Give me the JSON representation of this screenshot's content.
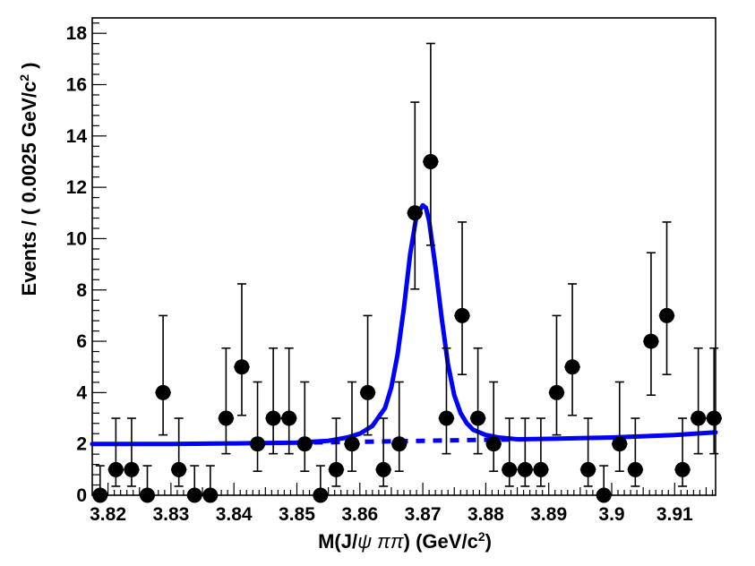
{
  "chart_data": {
    "type": "scatter",
    "title": "",
    "xlabel_parts": [
      "M(J/",
      "ψ ππ",
      ") (GeV/c",
      "2",
      ")"
    ],
    "ylabel_parts": [
      "Events / ( 0.0025 GeV/c",
      "2",
      " )"
    ],
    "xlim": [
      3.8175,
      3.9165
    ],
    "ylim": [
      0,
      18.6
    ],
    "x_ticks": [
      3.82,
      3.83,
      3.84,
      3.85,
      3.86,
      3.87,
      3.88,
      3.89,
      3.9,
      3.91
    ],
    "x_tick_labels": [
      "3.82",
      "3.83",
      "3.84",
      "3.85",
      "3.86",
      "3.87",
      "3.88",
      "3.89",
      "3.9",
      "3.91"
    ],
    "y_ticks": [
      0,
      2,
      4,
      6,
      8,
      10,
      12,
      14,
      16,
      18
    ],
    "y_tick_labels": [
      "0",
      "2",
      "4",
      "6",
      "8",
      "10",
      "12",
      "14",
      "16",
      "18"
    ],
    "bin_width": 0.0025,
    "data_points": {
      "x": [
        3.81875,
        3.82125,
        3.82375,
        3.82625,
        3.82875,
        3.83125,
        3.83375,
        3.83625,
        3.83875,
        3.84125,
        3.84375,
        3.84625,
        3.84875,
        3.85125,
        3.85375,
        3.85625,
        3.85875,
        3.86125,
        3.86375,
        3.86625,
        3.86875,
        3.87125,
        3.87375,
        3.87625,
        3.87875,
        3.88125,
        3.88375,
        3.88625,
        3.88875,
        3.89125,
        3.89375,
        3.89625,
        3.89875,
        3.90125,
        3.90375,
        3.90625,
        3.90875,
        3.91125,
        3.91375,
        3.91625
      ],
      "y": [
        0,
        1,
        1,
        0,
        4,
        1,
        0,
        0,
        3,
        5,
        2,
        3,
        3,
        2,
        0,
        1,
        2,
        4,
        1,
        2,
        11,
        13,
        3,
        7,
        3,
        2,
        1,
        1,
        1,
        4,
        5,
        1,
        0,
        2,
        1,
        6,
        7,
        1,
        3,
        3
      ]
    },
    "series": [
      {
        "style": "solid",
        "color": "#0000ff",
        "x": [
          3.8175,
          3.83,
          3.84,
          3.85,
          3.855,
          3.858,
          3.86,
          3.862,
          3.864,
          3.865,
          3.866,
          3.867,
          3.868,
          3.869,
          3.87,
          3.8705,
          3.871,
          3.872,
          3.873,
          3.874,
          3.875,
          3.876,
          3.877,
          3.878,
          3.88,
          3.882,
          3.885,
          3.89,
          3.9,
          3.91,
          3.9165
        ],
        "y": [
          2.0,
          2.0,
          2.02,
          2.05,
          2.12,
          2.25,
          2.4,
          2.7,
          3.4,
          4.2,
          5.5,
          7.3,
          9.4,
          10.9,
          11.3,
          11.2,
          10.7,
          8.9,
          6.9,
          5.1,
          3.9,
          3.2,
          2.8,
          2.55,
          2.35,
          2.25,
          2.18,
          2.2,
          2.25,
          2.35,
          2.45
        ]
      },
      {
        "style": "dashed",
        "color": "#0000ff",
        "x": [
          3.85,
          3.86,
          3.87,
          3.88,
          3.886
        ],
        "y": [
          2.05,
          2.08,
          2.12,
          2.16,
          2.18
        ]
      }
    ],
    "legend": "none",
    "grid": false
  }
}
